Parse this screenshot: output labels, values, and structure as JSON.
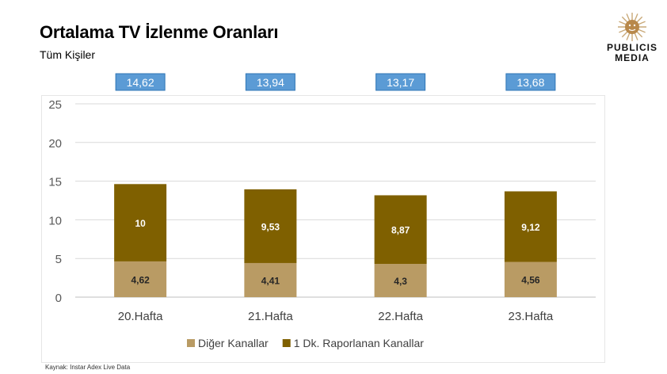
{
  "header": {
    "title": "Ortalama TV İzlenme Oranları",
    "subtitle": "Tüm Kişiler"
  },
  "logo": {
    "line1": "PUBLICIS",
    "line2": "MEDIA",
    "icon": "sun-icon"
  },
  "source": "Kaynak: Instar  Adex Live Data",
  "colors": {
    "diger": "#B99B64",
    "raporlanan": "#7F6000",
    "total_box_fill": "#5B9BD5",
    "total_box_border": "#2F75B5",
    "grid": "#D9D9D9"
  },
  "chart_data": {
    "type": "bar",
    "stacked": true,
    "categories": [
      "20.Hafta",
      "21.Hafta",
      "22.Hafta",
      "23.Hafta"
    ],
    "series": [
      {
        "name": "Diğer Kanallar",
        "values": [
          4.62,
          4.41,
          4.3,
          4.56
        ],
        "labels": [
          "4,62",
          "4,41",
          "4,3",
          "4,56"
        ]
      },
      {
        "name": "1 Dk. Raporlanan Kanallar",
        "values": [
          10,
          9.53,
          8.87,
          9.12
        ],
        "labels": [
          "10",
          "9,53",
          "8,87",
          "9,12"
        ]
      }
    ],
    "totals": [
      14.62,
      13.94,
      13.17,
      13.68
    ],
    "total_labels": [
      "14,62",
      "13,94",
      "13,17",
      "13,68"
    ],
    "ylim": [
      0,
      25
    ],
    "yticks": [
      0,
      5,
      10,
      15,
      20,
      25
    ],
    "grid": true,
    "legend_position": "bottom"
  }
}
